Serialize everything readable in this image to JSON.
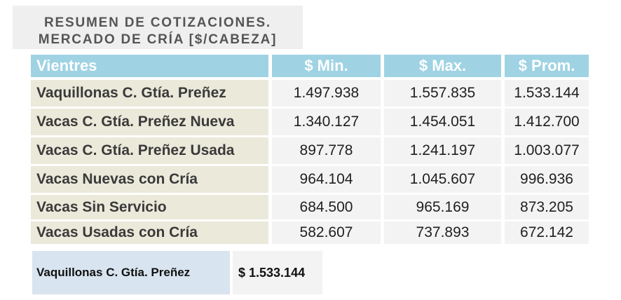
{
  "title": {
    "line1": "RESUMEN DE COTIZACIONES.",
    "line2": "MERCADO DE CRÍA [$/CABEZA]"
  },
  "table": {
    "headers": [
      "Vientres",
      "$ Min.",
      "$ Max.",
      "$ Prom."
    ],
    "rows": [
      {
        "label": "Vaquillonas C. Gtía. Preñez",
        "min": "1.497.938",
        "max": "1.557.835",
        "prom": "1.533.144"
      },
      {
        "label": "Vacas C. Gtía. Preñez Nueva",
        "min": "1.340.127",
        "max": "1.454.051",
        "prom": "1.412.700"
      },
      {
        "label": "Vacas C. Gtía. Preñez Usada",
        "min": "897.778",
        "max": "1.241.197",
        "prom": "1.003.077"
      },
      {
        "label": "Vacas Nuevas con Cría",
        "min": "964.104",
        "max": "1.045.607",
        "prom": "996.936"
      },
      {
        "label": "Vacas Sin Servicio",
        "min": "684.500",
        "max": "965.169",
        "prom": "873.205"
      },
      {
        "label": "Vacas Usadas con Cría",
        "min": "582.607",
        "max": "737.893",
        "prom": "672.142"
      }
    ]
  },
  "summary": {
    "label": "Vaquillonas C. Gtía. Preñez",
    "value": "$  1.533.144"
  },
  "colors": {
    "header_bg": "#9fd3e3",
    "label_bg": "#ebe9da",
    "value_bg": "#f3f3f3",
    "title_bg": "#efefef",
    "summary_label_bg": "#d8e4ef"
  }
}
